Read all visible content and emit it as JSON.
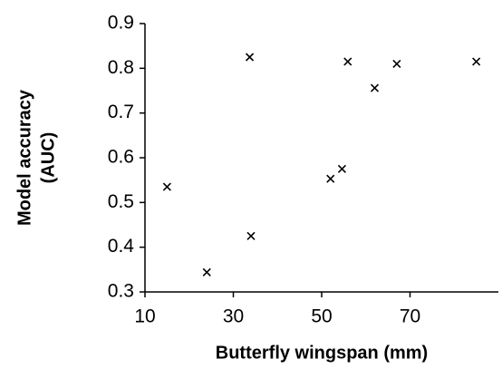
{
  "chart_data": {
    "type": "scatter",
    "x_label": "Butterfly wingspan (mm)",
    "y_label": [
      "Model accuracy",
      "(AUC)"
    ],
    "x": [
      15,
      24,
      33.7,
      34,
      52,
      54.6,
      55.9,
      62,
      67,
      85
    ],
    "values": [
      0.535,
      0.344,
      0.825,
      0.425,
      0.553,
      0.575,
      0.815,
      0.756,
      0.81,
      0.815
    ],
    "color": "#000000",
    "xlim": [
      10,
      90
    ],
    "xticks": [
      10,
      30,
      50,
      70
    ],
    "ylim": [
      0.3,
      0.9
    ],
    "yticks": [
      0.3,
      0.4,
      0.5,
      0.6,
      0.7,
      0.8,
      0.9
    ],
    "grid": false
  }
}
